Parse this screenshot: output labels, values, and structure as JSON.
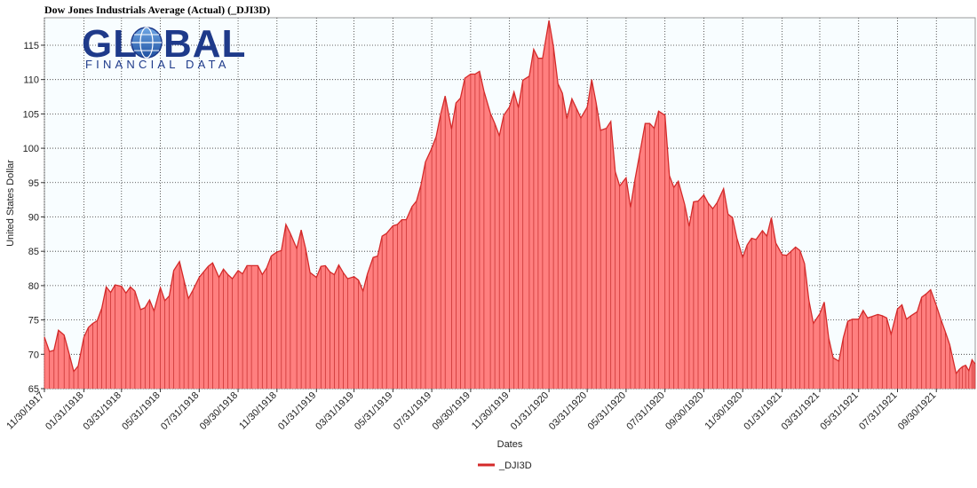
{
  "chart_data": {
    "type": "area",
    "title": "Dow Jones Industrials Average (Actual) (_DJI3D)",
    "xlabel": "Dates",
    "ylabel": "United States Dollar",
    "ylim": [
      65,
      119
    ],
    "xlim": [
      "1917-11-30",
      "1921-11-30"
    ],
    "yticks": [
      65,
      70,
      75,
      80,
      85,
      90,
      95,
      100,
      105,
      110,
      115
    ],
    "xticks": [
      "11/30/1917",
      "01/31/1918",
      "03/31/1918",
      "05/31/1918",
      "07/31/1918",
      "09/30/1918",
      "11/30/1918",
      "01/31/1919",
      "03/31/1919",
      "05/31/1919",
      "07/31/1919",
      "09/30/1919",
      "11/30/1919",
      "01/31/1920",
      "03/31/1920",
      "05/31/1920",
      "07/31/1920",
      "09/30/1920",
      "11/30/1920",
      "01/31/1921",
      "03/31/1921",
      "05/31/1921",
      "07/31/1921",
      "09/30/1921"
    ],
    "grid": true,
    "legend": "bottom-center",
    "series": [
      {
        "name": "_DJI3D",
        "color": "#d42a2a",
        "fill": "#ff7f7f",
        "points": [
          [
            "1917-11-30",
            72.5
          ],
          [
            "1917-12-08",
            70.4
          ],
          [
            "1917-12-15",
            70.6
          ],
          [
            "1917-12-22",
            73.5
          ],
          [
            "1917-12-31",
            72.8
          ],
          [
            "1918-01-08",
            70.0
          ],
          [
            "1918-01-15",
            67.5
          ],
          [
            "1918-01-22",
            68.3
          ],
          [
            "1918-01-31",
            72.5
          ],
          [
            "1918-02-07",
            73.9
          ],
          [
            "1918-02-14",
            74.5
          ],
          [
            "1918-02-21",
            74.9
          ],
          [
            "1918-02-28",
            76.7
          ],
          [
            "1918-03-07",
            79.8
          ],
          [
            "1918-03-14",
            79.0
          ],
          [
            "1918-03-21",
            80.1
          ],
          [
            "1918-03-31",
            79.9
          ],
          [
            "1918-04-07",
            78.9
          ],
          [
            "1918-04-14",
            79.8
          ],
          [
            "1918-04-21",
            79.2
          ],
          [
            "1918-04-30",
            76.5
          ],
          [
            "1918-05-07",
            76.8
          ],
          [
            "1918-05-14",
            77.9
          ],
          [
            "1918-05-21",
            76.3
          ],
          [
            "1918-05-31",
            79.7
          ],
          [
            "1918-06-07",
            77.8
          ],
          [
            "1918-06-14",
            78.5
          ],
          [
            "1918-06-21",
            82.2
          ],
          [
            "1918-06-30",
            83.5
          ],
          [
            "1918-07-07",
            80.8
          ],
          [
            "1918-07-14",
            78.1
          ],
          [
            "1918-07-21",
            79.3
          ],
          [
            "1918-07-31",
            81.2
          ],
          [
            "1918-08-07",
            82.0
          ],
          [
            "1918-08-14",
            82.8
          ],
          [
            "1918-08-21",
            83.3
          ],
          [
            "1918-08-31",
            81.2
          ],
          [
            "1918-09-07",
            82.4
          ],
          [
            "1918-09-14",
            81.6
          ],
          [
            "1918-09-21",
            81.0
          ],
          [
            "1918-09-30",
            82.2
          ],
          [
            "1918-10-07",
            81.7
          ],
          [
            "1918-10-14",
            82.9
          ],
          [
            "1918-10-21",
            82.9
          ],
          [
            "1918-10-31",
            82.9
          ],
          [
            "1918-11-07",
            81.6
          ],
          [
            "1918-11-14",
            82.6
          ],
          [
            "1918-11-21",
            84.3
          ],
          [
            "1918-11-30",
            84.9
          ],
          [
            "1918-12-07",
            85.1
          ],
          [
            "1918-12-14",
            88.9
          ],
          [
            "1918-12-21",
            87.6
          ],
          [
            "1918-12-31",
            85.4
          ],
          [
            "1919-01-07",
            88.1
          ],
          [
            "1919-01-14",
            85.4
          ],
          [
            "1919-01-21",
            81.9
          ],
          [
            "1919-01-31",
            81.2
          ],
          [
            "1919-02-07",
            82.8
          ],
          [
            "1919-02-14",
            82.9
          ],
          [
            "1919-02-21",
            82.0
          ],
          [
            "1919-02-28",
            81.6
          ],
          [
            "1919-03-07",
            83.0
          ],
          [
            "1919-03-14",
            81.9
          ],
          [
            "1919-03-21",
            81.0
          ],
          [
            "1919-03-31",
            81.3
          ],
          [
            "1919-04-07",
            80.8
          ],
          [
            "1919-04-14",
            79.2
          ],
          [
            "1919-04-21",
            81.7
          ],
          [
            "1919-04-30",
            84.1
          ],
          [
            "1919-05-07",
            84.3
          ],
          [
            "1919-05-14",
            87.2
          ],
          [
            "1919-05-21",
            87.6
          ],
          [
            "1919-05-31",
            88.7
          ],
          [
            "1919-06-07",
            88.9
          ],
          [
            "1919-06-14",
            89.6
          ],
          [
            "1919-06-21",
            89.6
          ],
          [
            "1919-06-30",
            91.5
          ],
          [
            "1919-07-07",
            92.3
          ],
          [
            "1919-07-14",
            94.6
          ],
          [
            "1919-07-21",
            98.0
          ],
          [
            "1919-07-31",
            100.0
          ],
          [
            "1919-08-07",
            101.7
          ],
          [
            "1919-08-14",
            105.0
          ],
          [
            "1919-08-21",
            107.6
          ],
          [
            "1919-08-31",
            102.8
          ],
          [
            "1919-09-07",
            106.6
          ],
          [
            "1919-09-14",
            107.3
          ],
          [
            "1919-09-21",
            110.2
          ],
          [
            "1919-09-30",
            110.8
          ],
          [
            "1919-10-07",
            110.8
          ],
          [
            "1919-10-14",
            111.2
          ],
          [
            "1919-10-21",
            108.3
          ],
          [
            "1919-10-31",
            105.1
          ],
          [
            "1919-11-07",
            103.6
          ],
          [
            "1919-11-14",
            101.8
          ],
          [
            "1919-11-21",
            104.8
          ],
          [
            "1919-11-30",
            106.0
          ],
          [
            "1919-12-07",
            108.2
          ],
          [
            "1919-12-14",
            105.9
          ],
          [
            "1919-12-21",
            109.9
          ],
          [
            "1919-12-31",
            110.5
          ],
          [
            "1920-01-07",
            114.4
          ],
          [
            "1920-01-14",
            113.1
          ],
          [
            "1920-01-21",
            113.1
          ],
          [
            "1920-01-31",
            118.6
          ],
          [
            "1920-02-07",
            114.8
          ],
          [
            "1920-02-14",
            109.4
          ],
          [
            "1920-02-21",
            108.0
          ],
          [
            "1920-02-28",
            104.3
          ],
          [
            "1920-03-07",
            107.2
          ],
          [
            "1920-03-14",
            105.8
          ],
          [
            "1920-03-21",
            104.4
          ],
          [
            "1920-03-31",
            106.0
          ],
          [
            "1920-04-07",
            110.0
          ],
          [
            "1920-04-14",
            106.6
          ],
          [
            "1920-04-21",
            102.6
          ],
          [
            "1920-04-30",
            102.9
          ],
          [
            "1920-05-07",
            103.9
          ],
          [
            "1920-05-14",
            96.6
          ],
          [
            "1920-05-21",
            94.5
          ],
          [
            "1920-05-31",
            95.7
          ],
          [
            "1920-06-07",
            91.4
          ],
          [
            "1920-06-14",
            95.5
          ],
          [
            "1920-06-21",
            99.0
          ],
          [
            "1920-06-30",
            103.6
          ],
          [
            "1920-07-07",
            103.6
          ],
          [
            "1920-07-14",
            102.9
          ],
          [
            "1920-07-21",
            105.4
          ],
          [
            "1920-07-31",
            104.8
          ],
          [
            "1920-08-07",
            96.0
          ],
          [
            "1920-08-14",
            94.3
          ],
          [
            "1920-08-21",
            95.2
          ],
          [
            "1920-08-31",
            91.8
          ],
          [
            "1920-09-07",
            88.6
          ],
          [
            "1920-09-14",
            92.2
          ],
          [
            "1920-09-21",
            92.3
          ],
          [
            "1920-09-30",
            93.2
          ],
          [
            "1920-10-07",
            92.0
          ],
          [
            "1920-10-14",
            91.2
          ],
          [
            "1920-10-21",
            92.1
          ],
          [
            "1920-10-31",
            94.1
          ],
          [
            "1920-11-07",
            90.4
          ],
          [
            "1920-11-14",
            89.9
          ],
          [
            "1920-11-21",
            86.9
          ],
          [
            "1920-11-30",
            84.1
          ],
          [
            "1920-12-07",
            85.9
          ],
          [
            "1920-12-14",
            86.9
          ],
          [
            "1920-12-21",
            86.7
          ],
          [
            "1920-12-31",
            88.0
          ],
          [
            "1921-01-07",
            87.2
          ],
          [
            "1921-01-14",
            89.9
          ],
          [
            "1921-01-21",
            86.2
          ],
          [
            "1921-01-31",
            84.5
          ],
          [
            "1921-02-07",
            84.4
          ],
          [
            "1921-02-14",
            85.0
          ],
          [
            "1921-02-21",
            85.6
          ],
          [
            "1921-02-28",
            85.1
          ],
          [
            "1921-03-07",
            83.2
          ],
          [
            "1921-03-14",
            77.8
          ],
          [
            "1921-03-21",
            74.5
          ],
          [
            "1921-03-31",
            75.9
          ],
          [
            "1921-04-07",
            77.6
          ],
          [
            "1921-04-14",
            72.4
          ],
          [
            "1921-04-21",
            69.5
          ],
          [
            "1921-04-30",
            69.0
          ],
          [
            "1921-05-07",
            72.4
          ],
          [
            "1921-05-14",
            74.8
          ],
          [
            "1921-05-21",
            75.1
          ],
          [
            "1921-05-31",
            75.1
          ],
          [
            "1921-06-07",
            76.4
          ],
          [
            "1921-06-14",
            75.3
          ],
          [
            "1921-06-21",
            75.5
          ],
          [
            "1921-06-30",
            75.8
          ],
          [
            "1921-07-07",
            75.6
          ],
          [
            "1921-07-14",
            75.3
          ],
          [
            "1921-07-21",
            72.9
          ],
          [
            "1921-07-31",
            76.6
          ],
          [
            "1921-08-07",
            77.2
          ],
          [
            "1921-08-14",
            75.1
          ],
          [
            "1921-08-21",
            75.6
          ],
          [
            "1921-08-31",
            76.2
          ],
          [
            "1921-09-07",
            78.3
          ],
          [
            "1921-09-14",
            78.8
          ],
          [
            "1921-09-21",
            79.4
          ],
          [
            "1921-09-30",
            77.1
          ],
          [
            "1921-10-07",
            75.1
          ],
          [
            "1921-10-14",
            73.3
          ],
          [
            "1921-10-21",
            71.4
          ],
          [
            "1921-10-31",
            67.2
          ],
          [
            "1921-11-05",
            67.8
          ],
          [
            "1921-11-10",
            68.2
          ],
          [
            "1921-11-15",
            68.4
          ],
          [
            "1921-11-20",
            67.6
          ],
          [
            "1921-11-25",
            69.2
          ],
          [
            "1921-11-28",
            68.8
          ],
          [
            "1921-11-30",
            68.6
          ]
        ]
      }
    ]
  }
}
